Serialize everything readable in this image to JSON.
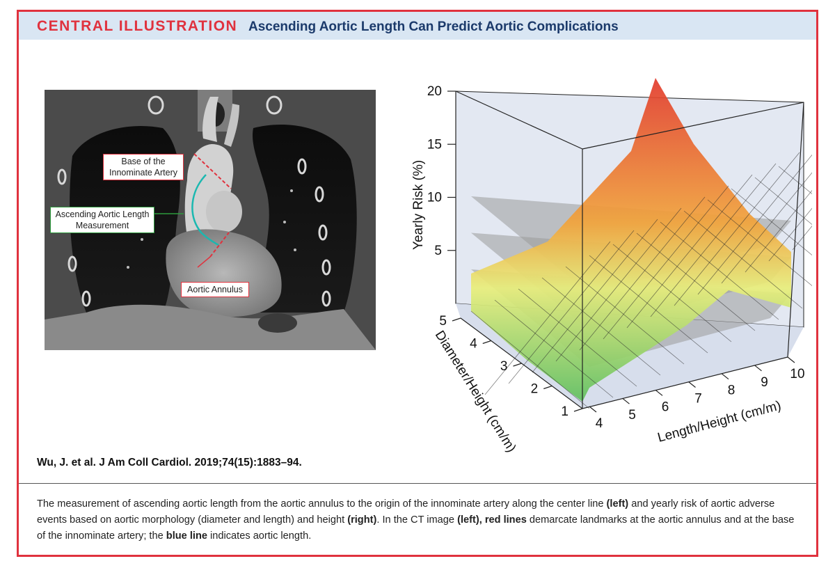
{
  "header": {
    "kicker": "CENTRAL ILLUSTRATION",
    "title": "Ascending Aortic Length Can Predict Aortic Complications",
    "colors": {
      "accent": "#e0323e",
      "header_bg": "#d9e6f3",
      "title": "#1b3a6b"
    }
  },
  "ct_image": {
    "labels": {
      "base_line1": "Base of the",
      "base_line2": "Innominate Artery",
      "length_line1": "Ascending Aortic Length",
      "length_line2": "Measurement",
      "annulus": "Aortic Annulus"
    }
  },
  "chart_data": {
    "type": "surface3d",
    "zlabel": "Yearly Risk (%)",
    "ylabel": "Diameter/Height (cm/m)",
    "xlabel": "Length/Height (cm/m)",
    "z_ticks": [
      "5",
      "10",
      "15",
      "20"
    ],
    "y_ticks": [
      "1",
      "2",
      "3",
      "4",
      "5"
    ],
    "x_ticks": [
      "4",
      "5",
      "6",
      "7",
      "8",
      "9",
      "10"
    ],
    "x_range": [
      4,
      10
    ],
    "y_range": [
      1,
      5
    ],
    "z_range": [
      0,
      20
    ],
    "threshold_planes": [
      4,
      7.5,
      11
    ],
    "max_risk": 20,
    "colors": [
      "#5fbf5f",
      "#e8ee7a",
      "#f2a43a",
      "#e23a2c"
    ]
  },
  "citation": "Wu, J. et al. J Am Coll Cardiol. 2019;74(15):1883–94.",
  "caption": {
    "p1": "The measurement of ascending aortic length from the aortic annulus to the origin of the innominate artery along the center line ",
    "left1": "(left)",
    "p2": " and yearly risk of aortic adverse events based on aortic morphology (diameter and length) and height ",
    "right1": "(right)",
    "p3": ". In the CT image ",
    "left2": "(left), red lines",
    "p4": " demarcate landmarks at the aortic annulus and at the base of the innominate artery; the ",
    "blue": "blue line",
    "p5": " indicates aortic length."
  }
}
